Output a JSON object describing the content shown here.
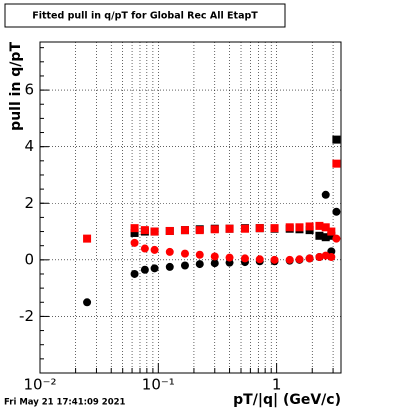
{
  "chart_data": {
    "type": "scatter",
    "title": "Fitted pull in q/pT for Global Rec All EtapT",
    "y_label": "pull in q/pT",
    "x_label": "pT/|q| (GeV/c)",
    "footer": "Fri May 21 17:41:09 2021",
    "log_x": true,
    "grid": true,
    "xlim": [
      0.01,
      3.5
    ],
    "ylim": [
      -4,
      7.7
    ],
    "xticks": [
      {
        "value": 0.01,
        "label": "10⁻²"
      },
      {
        "value": 0.1,
        "label": "10⁻¹"
      },
      1
    ],
    "yticks": [
      -2,
      0,
      2,
      4,
      6
    ],
    "x": [
      0.025,
      0.063,
      0.077,
      0.093,
      0.125,
      0.168,
      0.224,
      0.3,
      0.4,
      0.54,
      0.72,
      0.96,
      1.29,
      1.56,
      1.9,
      2.3,
      2.6,
      2.9,
      3.2
    ],
    "series": [
      {
        "marker": "circle",
        "color": "#000000",
        "values": [
          -1.5,
          -0.5,
          -0.35,
          -0.3,
          -0.25,
          -0.2,
          -0.15,
          -0.12,
          -0.1,
          -0.08,
          -0.05,
          -0.05,
          -0.03,
          0,
          0.05,
          0.1,
          2.3,
          0.3,
          1.7
        ]
      },
      {
        "marker": "square",
        "color": "#000000",
        "values": [
          null,
          0.95,
          1.0,
          1.0,
          1.02,
          1.05,
          1.08,
          1.1,
          1.1,
          1.12,
          1.12,
          1.1,
          1.1,
          1.08,
          1.05,
          0.85,
          0.8,
          0.85,
          4.25
        ]
      },
      {
        "marker": "square",
        "color": "#ff0000",
        "values": [
          0.75,
          1.12,
          1.05,
          1.0,
          1.02,
          1.05,
          1.05,
          1.08,
          1.1,
          1.1,
          1.12,
          1.12,
          1.15,
          1.15,
          1.18,
          1.2,
          1.15,
          1.0,
          3.4
        ]
      },
      {
        "marker": "circle",
        "color": "#ff0000",
        "values": [
          null,
          0.6,
          0.4,
          0.35,
          0.28,
          0.22,
          0.18,
          0.12,
          0.08,
          0.05,
          0.02,
          0.0,
          0.0,
          0.02,
          0.05,
          0.1,
          0.15,
          0.1,
          0.75
        ]
      }
    ]
  }
}
